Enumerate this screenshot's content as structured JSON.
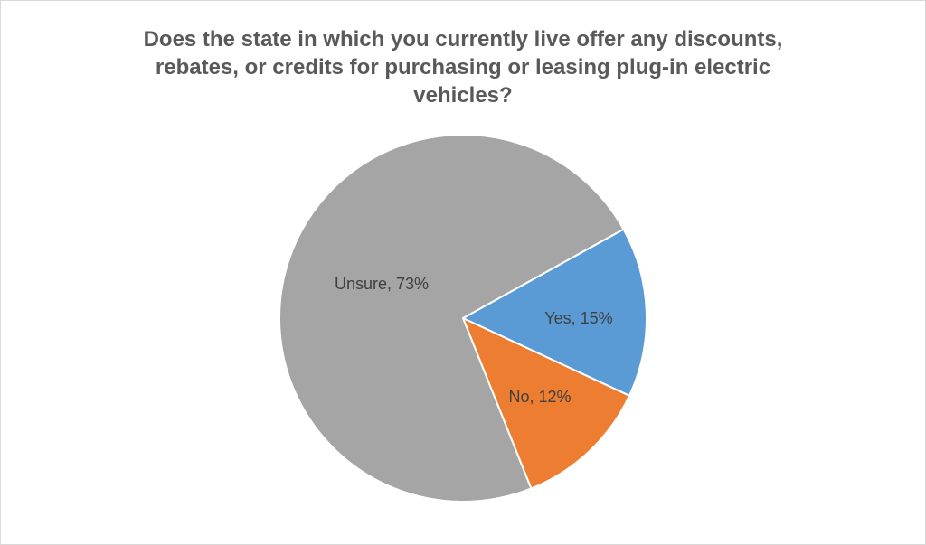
{
  "chart_data": {
    "type": "pie",
    "title": "Does the state in which you currently live offer any discounts, rebates, or credits for purchasing or leasing plug-in electric vehicles?",
    "title_lines": [
      "Does the state in which you currently live offer any discounts,",
      "rebates, or credits for purchasing or leasing plug-in electric",
      "vehicles?"
    ],
    "categories": [
      "Yes",
      "No",
      "Unsure"
    ],
    "values": [
      15,
      12,
      73
    ],
    "unit": "%",
    "colors": [
      "#5B9BD5",
      "#ED7D31",
      "#A5A5A5"
    ],
    "labels": [
      "Yes, 15%",
      "No, 12%",
      "Unsure, 73%"
    ],
    "legend": "none (data labels on slices)"
  }
}
